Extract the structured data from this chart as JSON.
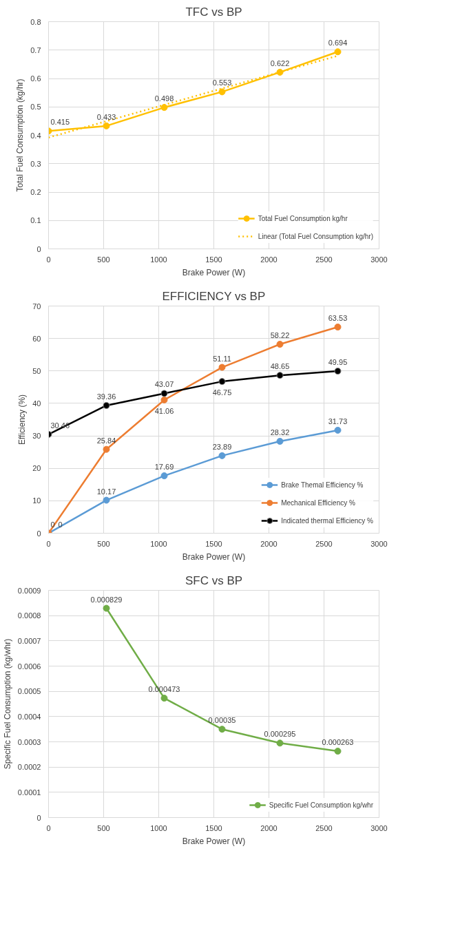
{
  "chart_data": [
    {
      "type": "line",
      "title": "TFC vs BP",
      "xlabel": "Brake Power (W)",
      "ylabel": "Total Fuel Consumption (kg/hr)",
      "x": [
        0,
        525,
        1050,
        1575,
        2100,
        2625
      ],
      "xlim": [
        0,
        3000
      ],
      "xticks": [
        0,
        500,
        1000,
        1500,
        2000,
        2500,
        3000
      ],
      "ylim": [
        0,
        0.8
      ],
      "yticks": [
        0,
        0.1,
        0.2,
        0.3,
        0.4,
        0.5,
        0.6,
        0.7,
        0.8
      ],
      "grid": true,
      "legend": "bottom right",
      "marker": "circle",
      "series": [
        {
          "name": "Total Fuel Consumption kg/hr",
          "color": "#ffc000",
          "values": [
            0.415,
            0.433,
            0.498,
            0.553,
            0.622,
            0.694
          ],
          "value_labels": [
            "0.415",
            "0.433",
            "0.498",
            "0.553",
            "0.622",
            "0.694"
          ]
        },
        {
          "name": "Linear (Total Fuel Consumption kg/hr)",
          "color": "#ffc000",
          "type": "line",
          "line_style": "dotted",
          "marker": "none",
          "x": [
            0,
            2625
          ],
          "values": [
            0.392,
            0.68
          ]
        }
      ]
    },
    {
      "type": "line",
      "title": "EFFICIENCY vs BP",
      "xlabel": "Brake Power (W)",
      "ylabel": "Efficiency (%)",
      "x": [
        0,
        525,
        1050,
        1575,
        2100,
        2625
      ],
      "xlim": [
        0,
        3000
      ],
      "xticks": [
        0,
        500,
        1000,
        1500,
        2000,
        2500,
        3000
      ],
      "ylim": [
        0,
        70
      ],
      "yticks": [
        0,
        10,
        20,
        30,
        40,
        50,
        60,
        70
      ],
      "grid": true,
      "legend": "bottom right",
      "marker": "circle",
      "series": [
        {
          "name": "Brake Themal Efficiency %",
          "color": "#5b9bd5",
          "values": [
            0,
            10.17,
            17.69,
            23.89,
            28.32,
            31.73
          ],
          "value_labels": [
            "0",
            "10.17",
            "17.69",
            "23.89",
            "28.32",
            "31.73"
          ]
        },
        {
          "name": "Mechanical Efficiency %",
          "color": "#ed7d31",
          "values": [
            0,
            25.84,
            41.06,
            51.11,
            58.22,
            63.53
          ],
          "value_labels": [
            "0",
            "25.84",
            "41.06",
            "51.11",
            "58.22",
            "63.53"
          ]
        },
        {
          "name": "Indicated thermal Efficiency %",
          "color": "#000000",
          "values": [
            30.46,
            39.36,
            43.07,
            46.75,
            48.65,
            49.95
          ],
          "value_labels": [
            "30.46",
            "39.36",
            "43.07",
            "46.75",
            "48.65",
            "49.95"
          ]
        }
      ]
    },
    {
      "type": "line",
      "title": "SFC vs BP",
      "xlabel": "Brake Power (W)",
      "ylabel": "Specific Fuel Consumption (kg/whr)",
      "x": [
        525,
        1050,
        1575,
        2100,
        2625
      ],
      "xlim": [
        0,
        3000
      ],
      "xticks": [
        0,
        500,
        1000,
        1500,
        2000,
        2500,
        3000
      ],
      "ylim": [
        0,
        0.0009
      ],
      "yticks": [
        0,
        0.0001,
        0.0002,
        0.0003,
        0.0004,
        0.0005,
        0.0006,
        0.0007,
        0.0008,
        0.0009
      ],
      "grid": true,
      "legend": "bottom right",
      "marker": "circle",
      "series": [
        {
          "name": "Specific Fuel Consumption kg/whr",
          "color": "#70ad47",
          "values": [
            0.000829,
            0.000473,
            0.00035,
            0.000295,
            0.000263
          ],
          "value_labels": [
            "0.000829",
            "0.000473",
            "0.00035",
            "0.000295",
            "0.000263"
          ]
        }
      ]
    }
  ]
}
